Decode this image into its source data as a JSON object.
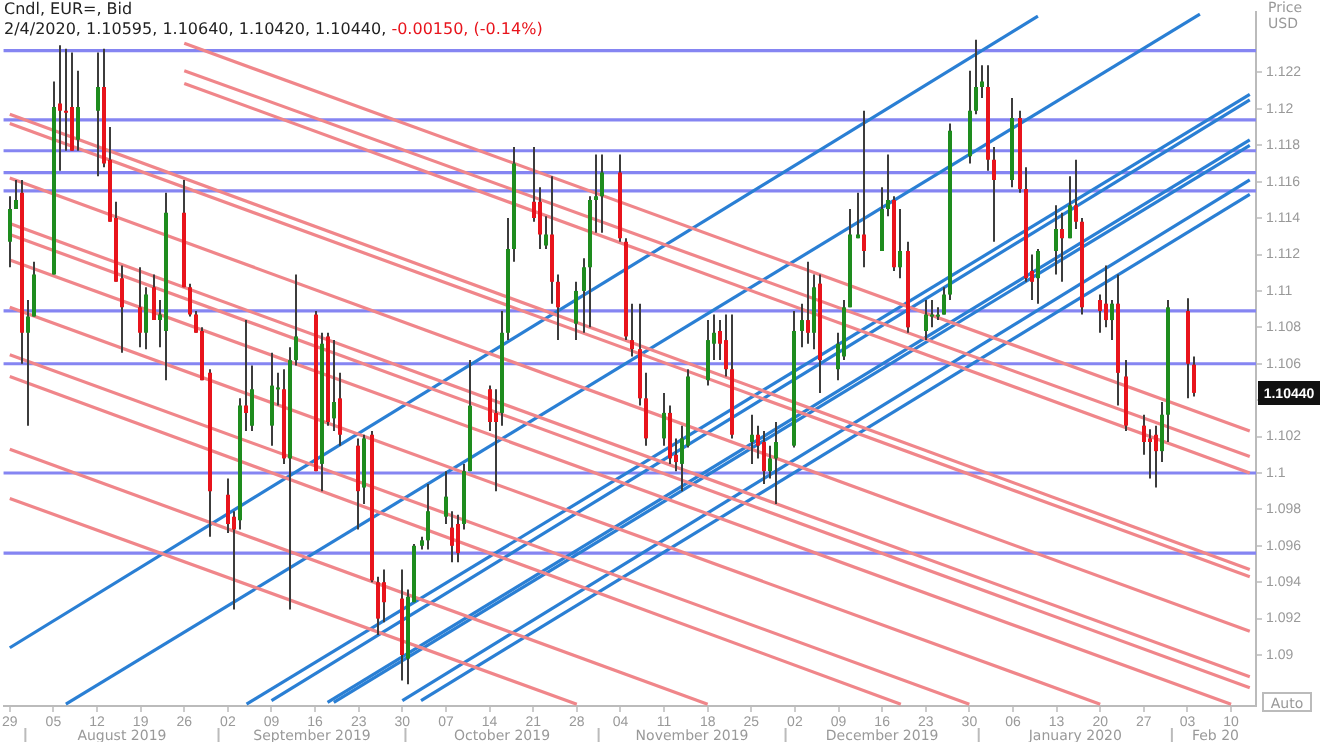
{
  "chart_data": {
    "type": "candlestick",
    "title": "Cndl, EUR=, Bid",
    "subtitle": "2/4/2020, 1.10595, 1.10640, 1.10420, 1.10440, -0.00150, (-0.14%)",
    "ylabel": "Price USD",
    "xlim": [
      "2019-07-28",
      "2020-02-14"
    ],
    "xticks": [
      {
        "value": "2019-07-29",
        "label": "29"
      },
      {
        "value": "2019-08-05",
        "label": "05"
      },
      {
        "value": "2019-08-12",
        "label": "12"
      },
      {
        "value": "2019-08-19",
        "label": "19"
      },
      {
        "value": "2019-08-26",
        "label": "26"
      },
      {
        "value": "2019-09-02",
        "label": "02"
      },
      {
        "value": "2019-09-09",
        "label": "09"
      },
      {
        "value": "2019-09-16",
        "label": "16"
      },
      {
        "value": "2019-09-23",
        "label": "23"
      },
      {
        "value": "2019-09-30",
        "label": "30"
      },
      {
        "value": "2019-10-07",
        "label": "07"
      },
      {
        "value": "2019-10-14",
        "label": "14"
      },
      {
        "value": "2019-10-21",
        "label": "21"
      },
      {
        "value": "2019-10-28",
        "label": "28"
      },
      {
        "value": "2019-11-04",
        "label": "04"
      },
      {
        "value": "2019-11-11",
        "label": "11"
      },
      {
        "value": "2019-11-18",
        "label": "18"
      },
      {
        "value": "2019-11-25",
        "label": "25"
      },
      {
        "value": "2019-12-02",
        "label": "02"
      },
      {
        "value": "2019-12-09",
        "label": "09"
      },
      {
        "value": "2019-12-16",
        "label": "16"
      },
      {
        "value": "2019-12-23",
        "label": "23"
      },
      {
        "value": "2019-12-30",
        "label": "30"
      },
      {
        "value": "2020-01-06",
        "label": "06"
      },
      {
        "value": "2020-01-13",
        "label": "13"
      },
      {
        "value": "2020-01-20",
        "label": "20"
      },
      {
        "value": "2020-01-27",
        "label": "27"
      },
      {
        "value": "2020-02-03",
        "label": "03"
      },
      {
        "value": "2020-02-10",
        "label": "10"
      }
    ],
    "ylim": [
      1.0872,
      1.1253
    ],
    "yticks": [
      1.09,
      1.092,
      1.094,
      1.096,
      1.098,
      1.1,
      1.102,
      {
        "value": 1.104,
        "label": null
      },
      1.106,
      1.108,
      1.11,
      1.112,
      1.114,
      1.116,
      1.118,
      1.12,
      1.122
    ],
    "legend": false,
    "grid": false,
    "series": [
      {
        "type": "candlestick",
        "colors": [
          "#1e8c1e",
          "#1e8c1e",
          "#e8141c",
          "#1e8c1e",
          "#1e8c1e",
          "#1e8c1e",
          "#e8141c",
          "#e8141c",
          "#e8141c",
          "#1e8c1e",
          "#1e8c1e",
          "#e8141c",
          "#e8141c",
          "#e8141c",
          "#e8141c",
          "#e8141c",
          "#1e8c1e",
          "#e8141c",
          "#1e8c1e",
          "#1e8c1e",
          "#e8141c",
          "#e8141c",
          "#e8141c",
          "#e8141c",
          "#e8141c",
          "#e8141c",
          "#e8141c",
          "#1e8c1e",
          "#e8141c",
          "#1e8c1e",
          "#1e8c1e",
          "#1e8c1e",
          "#e8141c",
          "#1e8c1e",
          "#1e8c1e",
          "#e8141c",
          "#1e8c1e",
          "#e8141c",
          "#1e8c1e",
          "#e8141c",
          "#e8141c",
          "#1e8c1e",
          "#e8141c",
          "#e8141c",
          "#e8141c",
          "#e8141c",
          "#1e8c1e",
          "#1e8c1e",
          "#1e8c1e",
          "#1e8c1e",
          "#1e8c1e",
          "#e8141c",
          "#e8141c",
          "#1e8c1e",
          "#1e8c1e",
          "#e8141c",
          "#e8141c",
          "#1e8c1e",
          "#1e8c1e",
          "#1e8c1e",
          "#e8141c",
          "#e8141c",
          "#1e8c1e",
          "#e8141c",
          "#e8141c",
          "#1e8c1e",
          "#1e8c1e",
          "#1e8c1e",
          "#1e8c1e",
          "#1e8c1e",
          "#e8141c",
          "#e8141c",
          "#e8141c",
          "#e8141c",
          "#e8141c",
          "#1e8c1e",
          "#e8141c",
          "#e8141c",
          "#1e8c1e",
          "#1e8c1e",
          "#1e8c1e",
          "#1e8c1e",
          "#e8141c",
          "#e8141c",
          "#e8141c",
          "#1e8c1e",
          "#e8141c",
          "#e8141c",
          "#1e8c1e",
          "#1e8c1e",
          "#1e8c1e",
          "#1e8c1e",
          "#e8141c",
          "#1e8c1e",
          "#e8141c",
          "#1e8c1e",
          "#1e8c1e",
          "#1e8c1e",
          "#1e8c1e",
          "#e8141c",
          "#1e8c1e",
          "#1e8c1e",
          "#e8141c",
          "#1e8c1e",
          "#e8141c",
          "#1e8c1e",
          "#1e8c1e",
          "#1e8c1e",
          "#1e8c1e",
          "#1e8c1e",
          "#1e8c1e",
          "#1e8c1e",
          "#1e8c1e",
          "#e8141c",
          "#e8141c",
          "#1e8c1e",
          "#e8141c",
          "#e8141c",
          "#e8141c",
          "#1e8c1e",
          "#1e8c1e",
          "#e8141c",
          "#1e8c1e",
          "#e8141c",
          "#e8141c",
          "#e8141c",
          "#e8141c",
          "#1e8c1e",
          "#e8141c",
          "#e8141c",
          "#e8141c",
          "#e8141c",
          "#e8141c",
          "#1e8c1e",
          "#1e8c1e",
          "#e8141c",
          "#e8141c"
        ],
        "x": [
          "2019-07-29",
          "2019-07-30",
          "2019-07-31",
          "2019-08-01",
          "2019-08-02",
          "2019-08-05",
          "2019-08-06",
          "2019-08-07",
          "2019-08-08",
          "2019-08-09",
          "2019-08-12",
          "2019-08-13",
          "2019-08-14",
          "2019-08-15",
          "2019-08-16",
          "2019-08-19",
          "2019-08-20",
          "2019-08-21",
          "2019-08-22",
          "2019-08-23",
          "2019-08-26",
          "2019-08-27",
          "2019-08-28",
          "2019-08-29",
          "2019-08-30",
          "2019-09-02",
          "2019-09-03",
          "2019-09-04",
          "2019-09-05",
          "2019-09-06",
          "2019-09-09",
          "2019-09-10",
          "2019-09-11",
          "2019-09-12",
          "2019-09-13",
          "2019-09-16",
          "2019-09-17",
          "2019-09-18",
          "2019-09-19",
          "2019-09-20",
          "2019-09-23",
          "2019-09-24",
          "2019-09-25",
          "2019-09-26",
          "2019-09-27",
          "2019-09-30",
          "2019-10-01",
          "2019-10-02",
          "2019-10-03",
          "2019-10-04",
          "2019-10-07",
          "2019-10-08",
          "2019-10-09",
          "2019-10-10",
          "2019-10-11",
          "2019-10-14",
          "2019-10-15",
          "2019-10-16",
          "2019-10-17",
          "2019-10-18",
          "2019-10-21",
          "2019-10-22",
          "2019-10-23",
          "2019-10-24",
          "2019-10-25",
          "2019-10-28",
          "2019-10-29",
          "2019-10-30",
          "2019-10-31",
          "2019-11-01",
          "2019-11-04",
          "2019-11-05",
          "2019-11-06",
          "2019-11-07",
          "2019-11-08",
          "2019-11-11",
          "2019-11-12",
          "2019-11-13",
          "2019-11-14",
          "2019-11-15",
          "2019-11-18",
          "2019-11-19",
          "2019-11-20",
          "2019-11-21",
          "2019-11-22",
          "2019-11-25",
          "2019-11-26",
          "2019-11-27",
          "2019-11-28",
          "2019-11-29",
          "2019-12-02",
          "2019-12-03",
          "2019-12-04",
          "2019-12-05",
          "2019-12-06",
          "2019-12-09",
          "2019-12-10",
          "2019-12-11",
          "2019-12-12",
          "2019-12-13",
          "2019-12-16",
          "2019-12-17",
          "2019-12-18",
          "2019-12-19",
          "2019-12-20",
          "2019-12-23",
          "2019-12-24",
          "2019-12-25",
          "2019-12-26",
          "2019-12-27",
          "2019-12-30",
          "2019-12-31",
          "2020-01-01",
          "2020-01-02",
          "2020-01-03",
          "2020-01-06",
          "2020-01-07",
          "2020-01-08",
          "2020-01-09",
          "2020-01-10",
          "2020-01-13",
          "2020-01-14",
          "2020-01-15",
          "2020-01-16",
          "2020-01-17",
          "2020-01-20",
          "2020-01-21",
          "2020-01-22",
          "2020-01-23",
          "2020-01-24",
          "2020-01-27",
          "2020-01-28",
          "2020-01-29",
          "2020-01-30",
          "2020-01-31",
          "2020-02-03",
          "2020-02-04"
        ],
        "ohlc": [
          [
            1.1127,
            1.1152,
            1.1113,
            1.1145
          ],
          [
            1.1145,
            1.1161,
            1.1145,
            1.115
          ],
          [
            1.1154,
            1.1161,
            1.106,
            1.1077
          ],
          [
            1.1077,
            1.1095,
            1.1026,
            1.1086
          ],
          [
            1.1086,
            1.1116,
            1.1086,
            1.1109
          ],
          [
            1.1109,
            1.1215,
            1.1109,
            1.1201
          ],
          [
            1.1203,
            1.1235,
            1.1166,
            1.1199
          ],
          [
            1.1199,
            1.1233,
            1.1177,
            1.1198
          ],
          [
            1.1201,
            1.1231,
            1.1177,
            1.1177
          ],
          [
            1.1183,
            1.1221,
            1.1177,
            1.1201
          ],
          [
            1.1199,
            1.1231,
            1.1163,
            1.1212
          ],
          [
            1.1212,
            1.1233,
            1.1168,
            1.117
          ],
          [
            1.1172,
            1.119,
            1.1138,
            1.1138
          ],
          [
            1.114,
            1.1149,
            1.1105,
            1.1105
          ],
          [
            1.1107,
            1.1114,
            1.1066,
            1.1091
          ],
          [
            1.1091,
            1.1113,
            1.1069,
            1.1077
          ],
          [
            1.1077,
            1.1102,
            1.1068,
            1.1098
          ],
          [
            1.1102,
            1.1109,
            1.1084,
            1.1084
          ],
          [
            1.1084,
            1.1095,
            1.1069,
            1.1087
          ],
          [
            1.1078,
            1.1154,
            1.1051,
            1.1143
          ],
          [
            1.1143,
            1.1161,
            1.1102,
            1.1102
          ],
          [
            1.1102,
            1.1104,
            1.1086,
            1.1087
          ],
          [
            1.1087,
            1.1089,
            1.1077,
            1.1077
          ],
          [
            1.1078,
            1.108,
            1.1051,
            1.1051
          ],
          [
            1.1055,
            1.1057,
            1.0965,
            1.099
          ],
          [
            1.0988,
            1.0997,
            1.0967,
            1.0972
          ],
          [
            1.0976,
            1.0979,
            1.0925,
            1.0969
          ],
          [
            1.0974,
            1.1041,
            1.0969,
            1.1037
          ],
          [
            1.1037,
            1.1084,
            1.1023,
            1.1033
          ],
          [
            1.1026,
            1.1059,
            1.1023,
            1.1046
          ],
          [
            1.1026,
            1.1066,
            1.1015,
            1.1048
          ],
          [
            1.1046,
            1.1055,
            1.1037,
            1.1047
          ],
          [
            1.1046,
            1.1057,
            1.1005,
            1.1008
          ],
          [
            1.1008,
            1.1069,
            1.0925,
            1.1062
          ],
          [
            1.1062,
            1.1109,
            1.1059,
            1.1075
          ],
          [
            1.1087,
            1.1089,
            1.1001,
            1.1001
          ],
          [
            1.1005,
            1.1077,
            1.099,
            1.1071
          ],
          [
            1.1075,
            1.1077,
            1.1026,
            1.1028
          ],
          [
            1.103,
            1.1073,
            1.1023,
            1.1039
          ],
          [
            1.1041,
            1.1055,
            1.1015,
            1.1021
          ],
          [
            1.1015,
            1.1019,
            1.0969,
            1.099
          ],
          [
            1.0992,
            1.1021,
            1.0983,
            1.1019
          ],
          [
            1.1021,
            1.1023,
            1.094,
            1.0941
          ],
          [
            1.094,
            1.0943,
            1.0911,
            1.092
          ],
          [
            1.094,
            1.0947,
            1.0918,
            1.0929
          ],
          [
            1.0931,
            1.0947,
            1.0886,
            1.09
          ],
          [
            1.0898,
            1.0936,
            1.0884,
            1.0932
          ],
          [
            1.0929,
            1.0961,
            1.0929,
            1.096
          ],
          [
            1.096,
            1.0965,
            1.0958,
            1.0963
          ],
          [
            1.0963,
            1.0994,
            1.0958,
            1.0979
          ],
          [
            1.0976,
            1.1001,
            1.0972,
            1.0987
          ],
          [
            1.097,
            1.0979,
            1.0951,
            1.096
          ],
          [
            1.0972,
            1.0977,
            1.0951,
            1.0956
          ],
          [
            1.0972,
            1.1005,
            1.0969,
            1.1001
          ],
          [
            1.1001,
            1.1062,
            1.1001,
            1.1037
          ],
          [
            1.1046,
            1.1048,
            1.1023,
            1.1028
          ],
          [
            1.1033,
            1.1046,
            1.099,
            1.1028
          ],
          [
            1.1033,
            1.1089,
            1.1026,
            1.1077
          ],
          [
            1.1077,
            1.114,
            1.1073,
            1.1123
          ],
          [
            1.1123,
            1.1179,
            1.1116,
            1.117
          ],
          [
            1.1149,
            1.1179,
            1.1138,
            1.114
          ],
          [
            1.1149,
            1.1157,
            1.1123,
            1.1131
          ],
          [
            1.1125,
            1.1141,
            1.1123,
            1.1131
          ],
          [
            1.1131,
            1.1163,
            1.1093,
            1.1105
          ],
          [
            1.1105,
            1.1109,
            1.1073,
            1.1091
          ],
          [
            1.1082,
            1.1105,
            1.1073,
            1.11
          ],
          [
            1.11,
            1.1118,
            1.1077,
            1.1113
          ],
          [
            1.1113,
            1.1152,
            1.108,
            1.115
          ],
          [
            1.115,
            1.1175,
            1.1132,
            1.1152
          ],
          [
            1.1152,
            1.1175,
            1.1132,
            1.1165
          ],
          [
            1.1165,
            1.1175,
            1.1127,
            1.1129
          ],
          [
            1.1127,
            1.1129,
            1.1073,
            1.1075
          ],
          [
            1.1073,
            1.1093,
            1.1064,
            1.1068
          ],
          [
            1.1068,
            1.1093,
            1.1037,
            1.1041
          ],
          [
            1.1041,
            1.1055,
            1.1015,
            1.1019
          ],
          [
            1.1019,
            1.1044,
            1.1015,
            1.1033
          ],
          [
            1.1033,
            1.1037,
            1.1005,
            1.1008
          ],
          [
            1.101,
            1.1019,
            1.1001,
            1.1006
          ],
          [
            1.1005,
            1.1026,
            1.099,
            1.1019
          ],
          [
            1.1015,
            1.1057,
            1.1014,
            1.1053
          ],
          [
            1.1051,
            1.1084,
            1.1048,
            1.1073
          ],
          [
            1.1071,
            1.1087,
            1.1062,
            1.1077
          ],
          [
            1.1078,
            1.1084,
            1.1062,
            1.1071
          ],
          [
            1.1073,
            1.1087,
            1.1053,
            1.1057
          ],
          [
            1.1057,
            1.1087,
            1.1019,
            1.1021
          ],
          [
            1.1017,
            1.1032,
            1.1005,
            1.1021
          ],
          [
            1.1021,
            1.1026,
            1.1008,
            1.1015
          ],
          [
            1.1017,
            1.1023,
            1.0994,
            1.1001
          ],
          [
            1.1001,
            1.1015,
            1.0997,
            1.1008
          ],
          [
            1.1008,
            1.1028,
            1.0983,
            1.1017
          ],
          [
            1.1015,
            1.1089,
            1.1014,
            1.1078
          ],
          [
            1.1078,
            1.1093,
            1.1069,
            1.1084
          ],
          [
            1.1084,
            1.1116,
            1.1071,
            1.1077
          ],
          [
            1.1077,
            1.1109,
            1.1068,
            1.1102
          ],
          [
            1.1104,
            1.1109,
            1.1044,
            1.1062
          ],
          [
            1.1057,
            1.1077,
            1.1051,
            1.1071
          ],
          [
            1.1064,
            1.1095,
            1.1062,
            1.1091
          ],
          [
            1.1091,
            1.1145,
            1.1091,
            1.1131
          ],
          [
            1.1129,
            1.1154,
            1.1129,
            1.1131
          ],
          [
            1.1131,
            1.1199,
            1.1113,
            1.1122
          ],
          [
            1.1122,
            1.1157,
            1.1122,
            1.1145
          ],
          [
            1.1145,
            1.1175,
            1.1141,
            1.115
          ],
          [
            1.115,
            1.1152,
            1.1111,
            1.1113
          ],
          [
            1.1113,
            1.1145,
            1.1107,
            1.1122
          ],
          [
            1.1122,
            1.1127,
            1.1077,
            1.108
          ],
          [
            1.1078,
            1.1095,
            1.1073,
            1.1087
          ],
          [
            1.1087,
            1.1095,
            1.108,
            1.1087
          ],
          [
            1.1087,
            1.1091,
            1.1084,
            1.1087
          ],
          [
            1.1087,
            1.1102,
            1.1087,
            1.1098
          ],
          [
            1.1098,
            1.1192,
            1.1095,
            1.1188
          ],
          [
            1.1174,
            1.1221,
            1.117,
            1.1199
          ],
          [
            1.1199,
            1.1238,
            1.1197,
            1.1212
          ],
          [
            1.1212,
            1.1224,
            1.1206,
            1.1215
          ],
          [
            1.1212,
            1.1224,
            1.1166,
            1.1172
          ],
          [
            1.1172,
            1.1179,
            1.1127,
            1.1161
          ],
          [
            1.1161,
            1.1206,
            1.1157,
            1.1195
          ],
          [
            1.1195,
            1.1199,
            1.1154,
            1.1156
          ],
          [
            1.1156,
            1.1168,
            1.1105,
            1.1107
          ],
          [
            1.1111,
            1.112,
            1.1095,
            1.1105
          ],
          [
            1.1107,
            1.1123,
            1.1093,
            1.1122
          ],
          [
            1.1122,
            1.1147,
            1.1109,
            1.1134
          ],
          [
            1.1134,
            1.1143,
            1.1105,
            1.1129
          ],
          [
            1.1129,
            1.1163,
            1.1129,
            1.1147
          ],
          [
            1.1147,
            1.1172,
            1.1134,
            1.1138
          ],
          [
            1.1138,
            1.114,
            1.1087,
            1.1091
          ],
          [
            1.1095,
            1.1098,
            1.1077,
            1.1089
          ],
          [
            1.1093,
            1.1114,
            1.108,
            1.1084
          ],
          [
            1.1084,
            1.1095,
            1.1073,
            1.1093
          ],
          [
            1.1093,
            1.1109,
            1.1037,
            1.1055
          ],
          [
            1.1053,
            1.1062,
            1.1023,
            1.1026
          ],
          [
            1.1026,
            1.1032,
            1.101,
            1.1017
          ],
          [
            1.1019,
            1.1024,
            1.0997,
            1.1017
          ],
          [
            1.1021,
            1.1026,
            1.0992,
            1.1012
          ],
          [
            1.1012,
            1.1039,
            1.1006,
            1.1032
          ],
          [
            1.1032,
            1.1095,
            1.1017,
            1.1091
          ],
          [
            1.1089,
            1.1096,
            1.1041,
            1.106
          ],
          [
            1.10595,
            1.1064,
            1.1042,
            1.1044
          ]
        ]
      },
      {
        "type": "line",
        "color": "#f0868a",
        "x": [
          "2019-08-26",
          "2020-02-13"
        ],
        "values": [
          1.1236,
          1.1023
        ]
      },
      {
        "type": "line",
        "color": "#f0868a",
        "x": [
          "2019-08-26",
          "2020-02-13"
        ],
        "values": [
          1.1221,
          1.1009
        ]
      },
      {
        "type": "line",
        "color": "#f0868a",
        "x": [
          "2019-08-26",
          "2020-02-13"
        ],
        "values": [
          1.1214,
          1.1
        ]
      },
      {
        "type": "line",
        "color": "#f0868a",
        "x": [
          "2019-07-29",
          "2020-02-13"
        ],
        "values": [
          1.1197,
          1.0947
        ]
      },
      {
        "type": "line",
        "color": "#f0868a",
        "x": [
          "2019-07-29",
          "2020-02-13"
        ],
        "values": [
          1.1192,
          1.0943
        ]
      },
      {
        "type": "line",
        "color": "#f0868a",
        "x": [
          "2019-07-29",
          "2020-02-13"
        ],
        "values": [
          1.1162,
          1.0913
        ]
      },
      {
        "type": "line",
        "color": "#f0868a",
        "x": [
          "2019-07-29",
          "2020-02-13"
        ],
        "values": [
          1.1137,
          1.0888
        ]
      },
      {
        "type": "line",
        "color": "#f0868a",
        "x": [
          "2019-07-29",
          "2020-02-13"
        ],
        "values": [
          1.1131,
          1.0882
        ]
      },
      {
        "type": "line",
        "color": "#f0868a",
        "x": [
          "2019-07-29",
          "2020-02-10"
        ],
        "values": [
          1.1117,
          1.0873
        ]
      },
      {
        "type": "line",
        "color": "#f0868a",
        "x": [
          "2019-07-29",
          "2020-01-20"
        ],
        "values": [
          1.1091,
          1.0873
        ]
      },
      {
        "type": "line",
        "color": "#f0868a",
        "x": [
          "2019-07-29",
          "2019-12-30"
        ],
        "values": [
          1.1065,
          1.0873
        ]
      },
      {
        "type": "line",
        "color": "#f0868a",
        "x": [
          "2019-07-29",
          "2019-12-19"
        ],
        "values": [
          1.1053,
          1.0873
        ]
      },
      {
        "type": "line",
        "color": "#f0868a",
        "x": [
          "2019-07-29",
          "2019-11-18"
        ],
        "values": [
          1.1013,
          1.0873
        ]
      },
      {
        "type": "line",
        "color": "#f0868a",
        "x": [
          "2019-07-29",
          "2019-10-28"
        ],
        "values": [
          1.0986,
          1.0873
        ]
      },
      {
        "type": "line",
        "color": "#2a7fd4",
        "x": [
          "2019-07-29",
          "2020-01-10"
        ],
        "values": [
          1.0904,
          1.1251
        ]
      },
      {
        "type": "line",
        "color": "#2a7fd4",
        "x": [
          "2019-08-07",
          "2020-02-05"
        ],
        "values": [
          1.0873,
          1.1252
        ]
      },
      {
        "type": "line",
        "color": "#2a7fd4",
        "x": [
          "2019-09-05",
          "2020-02-13"
        ],
        "values": [
          1.0873,
          1.1208
        ]
      },
      {
        "type": "line",
        "color": "#2a7fd4",
        "x": [
          "2019-09-09",
          "2020-02-13"
        ],
        "values": [
          1.0875,
          1.1205
        ]
      },
      {
        "type": "line",
        "color": "#2a7fd4",
        "x": [
          "2019-09-18",
          "2020-02-13"
        ],
        "values": [
          1.0874,
          1.1183
        ]
      },
      {
        "type": "line",
        "color": "#2a7fd4",
        "x": [
          "2019-09-19",
          "2020-02-13"
        ],
        "values": [
          1.0874,
          1.118
        ]
      },
      {
        "type": "line",
        "color": "#2a7fd4",
        "x": [
          "2019-09-30",
          "2020-02-13"
        ],
        "values": [
          1.0875,
          1.1161
        ]
      },
      {
        "type": "line",
        "color": "#2a7fd4",
        "x": [
          "2019-10-03",
          "2020-02-13"
        ],
        "values": [
          1.0875,
          1.1153
        ]
      }
    ],
    "ref_lines": [
      {
        "axis": "y",
        "value": 1.1232,
        "color": "#8585f2"
      },
      {
        "axis": "y",
        "value": 1.1194,
        "color": "#8585f2"
      },
      {
        "axis": "y",
        "value": 1.1177,
        "color": "#8585f2"
      },
      {
        "axis": "y",
        "value": 1.1165,
        "color": "#8585f2"
      },
      {
        "axis": "y",
        "value": 1.1155,
        "color": "#8585f2"
      },
      {
        "axis": "y",
        "value": 1.1089,
        "color": "#8585f2"
      },
      {
        "axis": "y",
        "value": 1.106,
        "color": "#8585f2"
      },
      {
        "axis": "y",
        "value": 1.1,
        "color": "#8585f2"
      },
      {
        "axis": "y",
        "value": 1.0956,
        "color": "#8585f2"
      }
    ],
    "annotations": [
      "August 2019",
      "September 2019",
      "October 2019",
      "November 2019",
      "December 2019",
      "January 2020",
      "Feb 20",
      "Auto",
      {
        "text": "1.10440",
        "y": 1.1044
      }
    ]
  }
}
